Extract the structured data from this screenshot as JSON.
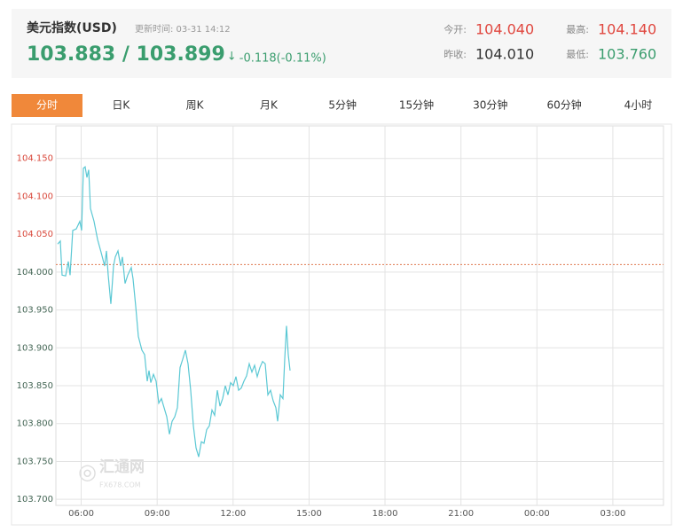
{
  "header": {
    "title": "美元指数(USD)",
    "update_time": "更新时间: 03-31 14:12",
    "price": "103.883 / 103.899",
    "arrow": "↓",
    "change": "-0.118(-0.11%)",
    "stats": [
      {
        "label": "今开:",
        "value": "104.040",
        "color": "#e0473f"
      },
      {
        "label": "最高:",
        "value": "104.140",
        "color": "#e0473f"
      },
      {
        "label": "昨收:",
        "value": "104.010",
        "color": "#333333"
      },
      {
        "label": "最低:",
        "value": "103.760",
        "color": "#3a9d6e"
      }
    ]
  },
  "tabs": [
    "分时",
    "日K",
    "周K",
    "月K",
    "5分钟",
    "15分钟",
    "30分钟",
    "60分钟",
    "4小时"
  ],
  "watermark": {
    "name": "汇通网",
    "site": "FX678.COM"
  },
  "chart_data": {
    "type": "line",
    "color": "#5bc8d4",
    "reference_line": 104.01,
    "reference_color": "#e07a50",
    "grid": true,
    "x": [
      5.07,
      5.175,
      5.245,
      5.385,
      5.491,
      5.561,
      5.666,
      5.806,
      5.946,
      6.016,
      6.086,
      6.156,
      6.226,
      6.296,
      6.366,
      6.507,
      6.647,
      6.787,
      6.927,
      6.997,
      7.067,
      7.172,
      7.277,
      7.347,
      7.453,
      7.558,
      7.628,
      7.733,
      7.838,
      7.978,
      8.048,
      8.153,
      8.258,
      8.398,
      8.504,
      8.609,
      8.679,
      8.749,
      8.854,
      8.959,
      9.064,
      9.169,
      9.274,
      9.38,
      9.485,
      9.59,
      9.695,
      9.8,
      9.905,
      10.01,
      10.115,
      10.22,
      10.325,
      10.431,
      10.536,
      10.641,
      10.746,
      10.851,
      10.956,
      11.061,
      11.166,
      11.271,
      11.377,
      11.482,
      11.587,
      11.692,
      11.797,
      11.902,
      12.007,
      12.112,
      12.217,
      12.323,
      12.428,
      12.533,
      12.638,
      12.743,
      12.848,
      12.953,
      13.058,
      13.163,
      13.268,
      13.374,
      13.479,
      13.584,
      13.689,
      13.759,
      13.864,
      13.969,
      14.039,
      14.109,
      14.179,
      14.25
    ],
    "values": [
      104.037,
      104.041,
      103.996,
      103.995,
      104.014,
      103.996,
      104.055,
      104.057,
      104.067,
      104.055,
      104.137,
      104.139,
      104.125,
      104.135,
      104.084,
      104.067,
      104.043,
      104.026,
      104.008,
      104.028,
      103.996,
      103.958,
      104.008,
      104.02,
      104.028,
      104.008,
      104.02,
      103.985,
      103.996,
      104.006,
      103.991,
      103.955,
      103.915,
      103.897,
      103.891,
      103.856,
      103.87,
      103.854,
      103.865,
      103.856,
      103.827,
      103.833,
      103.821,
      103.809,
      103.786,
      103.803,
      103.809,
      103.821,
      103.874,
      103.885,
      103.897,
      103.879,
      103.844,
      103.797,
      103.768,
      103.756,
      103.776,
      103.774,
      103.792,
      103.797,
      103.818,
      103.811,
      103.844,
      103.823,
      103.833,
      103.85,
      103.838,
      103.854,
      103.85,
      103.862,
      103.844,
      103.847,
      103.856,
      103.863,
      103.879,
      103.868,
      103.877,
      103.862,
      103.874,
      103.882,
      103.879,
      103.838,
      103.844,
      103.83,
      103.821,
      103.803,
      103.838,
      103.833,
      103.885,
      103.929,
      103.891,
      103.87
    ],
    "xlim": [
      5,
      29
    ],
    "xticks": [
      {
        "value": 6,
        "label": "06:00"
      },
      {
        "value": 9,
        "label": "09:00"
      },
      {
        "value": 12,
        "label": "12:00"
      },
      {
        "value": 15,
        "label": "15:00"
      },
      {
        "value": 18,
        "label": "18:00"
      },
      {
        "value": 21,
        "label": "21:00"
      },
      {
        "value": 24,
        "label": "00:00"
      },
      {
        "value": 27,
        "label": "03:00"
      }
    ],
    "ylim": [
      103.692,
      104.193
    ],
    "yticks": [
      {
        "value": 103.7,
        "label": "103.700"
      },
      {
        "value": 103.75,
        "label": "103.750"
      },
      {
        "value": 103.8,
        "label": "103.800"
      },
      {
        "value": 103.85,
        "label": "103.850"
      },
      {
        "value": 103.9,
        "label": "103.900"
      },
      {
        "value": 103.95,
        "label": "103.950"
      },
      {
        "value": 104,
        "label": "104.000"
      },
      {
        "value": 104.05,
        "label": "104.050"
      },
      {
        "value": 104.1,
        "label": "104.100"
      },
      {
        "value": 104.15,
        "label": "104.150"
      }
    ]
  }
}
